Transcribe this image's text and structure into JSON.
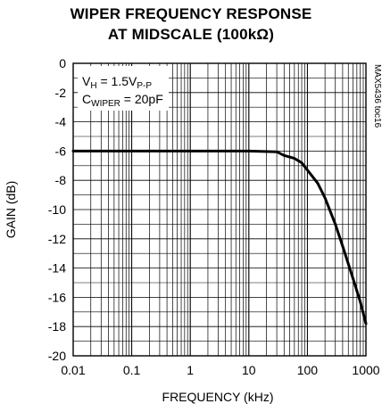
{
  "chart_data": {
    "type": "line",
    "title": [
      "WIPER FREQUENCY RESPONSE",
      "AT MIDSCALE (100kΩ)"
    ],
    "xlabel": "FREQUENCY (kHz)",
    "ylabel": "GAIN (dB)",
    "xscale": "log",
    "xlim": [
      0.01,
      1000
    ],
    "ylim": [
      -20,
      0
    ],
    "xticks": [
      "0.01",
      "0.1",
      "1",
      "10",
      "100",
      "1000"
    ],
    "yticks": [
      "0",
      "-2",
      "-4",
      "-6",
      "-8",
      "-10",
      "-12",
      "-14",
      "-16",
      "-18",
      "-20"
    ],
    "grid": true,
    "annotations": {
      "vh": {
        "main": "V",
        "sub1": "H",
        "mid": " = 1.5V",
        "sub2": "P-P"
      },
      "cwiper": {
        "main": "C",
        "sub1": "WIPER",
        "mid": " = 20pF"
      },
      "side": "MAX5436 toc16"
    },
    "series": [
      {
        "x": [
          0.01,
          0.1,
          1,
          10,
          30,
          40,
          60,
          80,
          100,
          150,
          200,
          300,
          400,
          600,
          800,
          1000
        ],
        "y": [
          -6.0,
          -6.0,
          -6.0,
          -6.0,
          -6.05,
          -6.3,
          -6.5,
          -6.8,
          -7.3,
          -8.2,
          -9.2,
          -11.0,
          -12.5,
          -14.7,
          -16.3,
          -17.8
        ]
      }
    ]
  }
}
